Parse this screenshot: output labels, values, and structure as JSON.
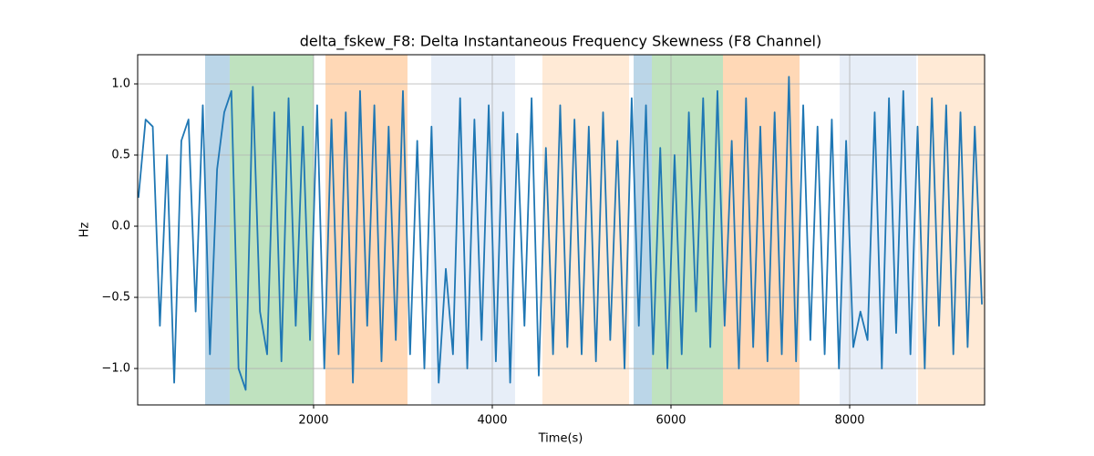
{
  "chart_data": {
    "type": "line",
    "title": "delta_fskew_F8: Delta Instantaneous Frequency Skewness (F8 Channel)",
    "xlabel": "Time(s)",
    "ylabel": "Hz",
    "xlim": [
      31,
      9510
    ],
    "ylim": [
      -1.256,
      1.205
    ],
    "xticks": [
      2000,
      4000,
      6000,
      8000
    ],
    "yticks": [
      {
        "value": -1,
        "label": "−1.0"
      },
      {
        "value": -0.5,
        "label": "−0.5"
      },
      {
        "value": 0,
        "label": "0.0"
      },
      {
        "value": 0.5,
        "label": "0.5"
      },
      {
        "value": 1,
        "label": "1.0"
      }
    ],
    "grid": true,
    "spans": [
      {
        "x0": 786,
        "x1": 1061,
        "color": "#1f77b4",
        "alpha": 0.3
      },
      {
        "x0": 1061,
        "x1": 2000,
        "color": "#2ca02c",
        "alpha": 0.3
      },
      {
        "x0": 2133,
        "x1": 3051,
        "color": "#ff7f0e",
        "alpha": 0.3
      },
      {
        "x0": 3316,
        "x1": 4255,
        "color": "#aec7e8",
        "alpha": 0.3
      },
      {
        "x0": 4561,
        "x1": 5531,
        "color": "#ffbb78",
        "alpha": 0.3
      },
      {
        "x0": 5582,
        "x1": 5786,
        "color": "#1f77b4",
        "alpha": 0.3
      },
      {
        "x0": 5786,
        "x1": 6582,
        "color": "#2ca02c",
        "alpha": 0.3
      },
      {
        "x0": 6582,
        "x1": 7439,
        "color": "#ff7f0e",
        "alpha": 0.3
      },
      {
        "x0": 7888,
        "x1": 8745,
        "color": "#aec7e8",
        "alpha": 0.3
      },
      {
        "x0": 8765,
        "x1": 9510,
        "color": "#ffbb78",
        "alpha": 0.3
      }
    ],
    "x": [
      40,
      120,
      200,
      280,
      360,
      440,
      520,
      600,
      680,
      760,
      840,
      920,
      1000,
      1080,
      1160,
      1240,
      1320,
      1400,
      1480,
      1560,
      1640,
      1720,
      1800,
      1880,
      1960,
      2040,
      2120,
      2200,
      2280,
      2360,
      2440,
      2520,
      2600,
      2680,
      2760,
      2840,
      2920,
      3000,
      3080,
      3160,
      3240,
      3320,
      3400,
      3480,
      3560,
      3640,
      3720,
      3800,
      3880,
      3960,
      4040,
      4120,
      4200,
      4280,
      4360,
      4440,
      4520,
      4600,
      4680,
      4760,
      4840,
      4920,
      5000,
      5080,
      5160,
      5240,
      5320,
      5400,
      5480,
      5560,
      5640,
      5720,
      5800,
      5880,
      5960,
      6040,
      6120,
      6200,
      6280,
      6360,
      6440,
      6520,
      6600,
      6680,
      6760,
      6840,
      6920,
      7000,
      7080,
      7160,
      7240,
      7320,
      7400,
      7480,
      7560,
      7640,
      7720,
      7800,
      7880,
      7960,
      8040,
      8120,
      8200,
      8280,
      8360,
      8440,
      8520,
      8600,
      8680,
      8760,
      8840,
      8920,
      9000,
      9080,
      9160,
      9240,
      9320,
      9400,
      9480
    ],
    "series": [
      {
        "color": "#1f77b4",
        "values": [
          0.2,
          0.75,
          0.7,
          -0.7,
          0.5,
          -1.1,
          0.6,
          0.75,
          -0.6,
          0.85,
          -0.9,
          0.4,
          0.8,
          0.95,
          -1.0,
          -1.15,
          0.98,
          -0.6,
          -0.9,
          0.8,
          -0.95,
          0.9,
          -0.7,
          0.7,
          -0.8,
          0.85,
          -1.0,
          0.75,
          -0.9,
          0.8,
          -1.1,
          0.95,
          -0.7,
          0.85,
          -0.95,
          0.7,
          -0.8,
          0.95,
          -0.9,
          0.6,
          -1.0,
          0.7,
          -1.1,
          -0.3,
          -0.9,
          0.9,
          -1.0,
          0.75,
          -0.8,
          0.85,
          -0.95,
          0.8,
          -1.1,
          0.65,
          -0.7,
          0.9,
          -1.05,
          0.55,
          -0.9,
          0.85,
          -0.85,
          0.75,
          -0.9,
          0.7,
          -0.95,
          0.8,
          -0.8,
          0.6,
          -1.0,
          0.9,
          -0.7,
          0.85,
          -0.9,
          0.55,
          -1.0,
          0.5,
          -0.9,
          0.8,
          -0.6,
          0.9,
          -0.85,
          0.95,
          -0.7,
          0.6,
          -1.0,
          0.9,
          -0.85,
          0.7,
          -0.95,
          0.8,
          -0.9,
          1.05,
          -0.95,
          0.85,
          -0.8,
          0.7,
          -0.9,
          0.75,
          -1.0,
          0.6,
          -0.85,
          -0.6,
          -0.8,
          0.8,
          -1.0,
          0.9,
          -0.75,
          0.95,
          -0.9,
          0.7,
          -1.0,
          0.9,
          -0.7,
          0.85,
          -0.9,
          0.8,
          -0.85,
          0.7,
          -0.55
        ]
      }
    ]
  }
}
